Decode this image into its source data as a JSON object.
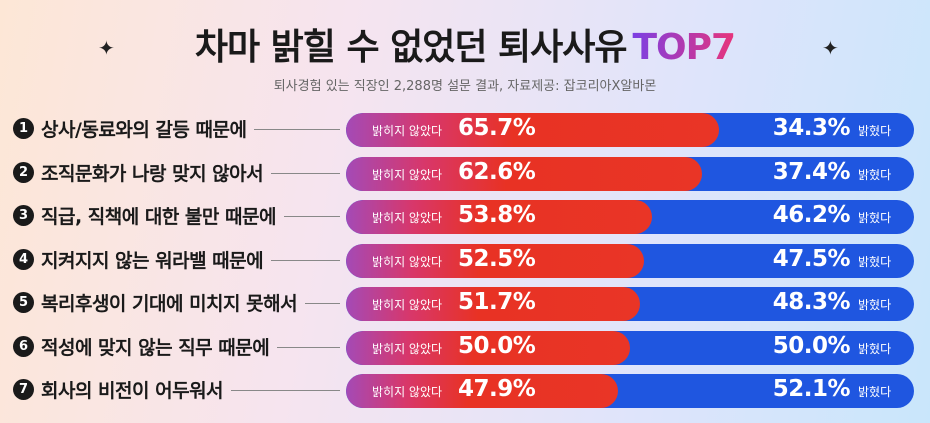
{
  "title": {
    "main": "차마 밝힐 수 없었던 퇴사사유",
    "highlight": "TOP7"
  },
  "subtitle": "퇴사경험 있는 직장인 2,288명 설문 결과, 자료제공: 잡코리아X알바몬",
  "colors": {
    "not_revealed": "#e83224",
    "revealed": "#1f56e0"
  },
  "chart_data": {
    "type": "bar",
    "stacked": true,
    "orientation": "horizontal",
    "title": "차마 밝힐 수 없었던 퇴사사유 TOP7",
    "categories": [
      "상사/동료와의 갈등 때문에",
      "조직문화가 나랑 맞지 않아서",
      "직급, 직책에 대한 불만 때문에",
      "지켜지지 않는 워라밸 때문에",
      "복리후생이 기대에 미치지 못해서",
      "적성에 맞지 않는 직무 때문에",
      "회사의 비전이 어두워서"
    ],
    "ranks": [
      "1",
      "2",
      "3",
      "4",
      "5",
      "6",
      "7"
    ],
    "series": [
      {
        "name": "밝히지 않았다",
        "values": [
          65.7,
          62.6,
          53.8,
          52.5,
          51.7,
          50.0,
          47.9
        ],
        "labels": [
          "65.7%",
          "62.6%",
          "53.8%",
          "52.5%",
          "51.7%",
          "50.0%",
          "47.9%"
        ]
      },
      {
        "name": "밝혔다",
        "values": [
          34.3,
          37.4,
          46.2,
          47.5,
          48.3,
          50.0,
          52.1
        ],
        "labels": [
          "34.3%",
          "37.4%",
          "46.2%",
          "47.5%",
          "48.3%",
          "50.0%",
          "52.1%"
        ]
      }
    ],
    "xlim": [
      0,
      100
    ],
    "unit": "%"
  }
}
